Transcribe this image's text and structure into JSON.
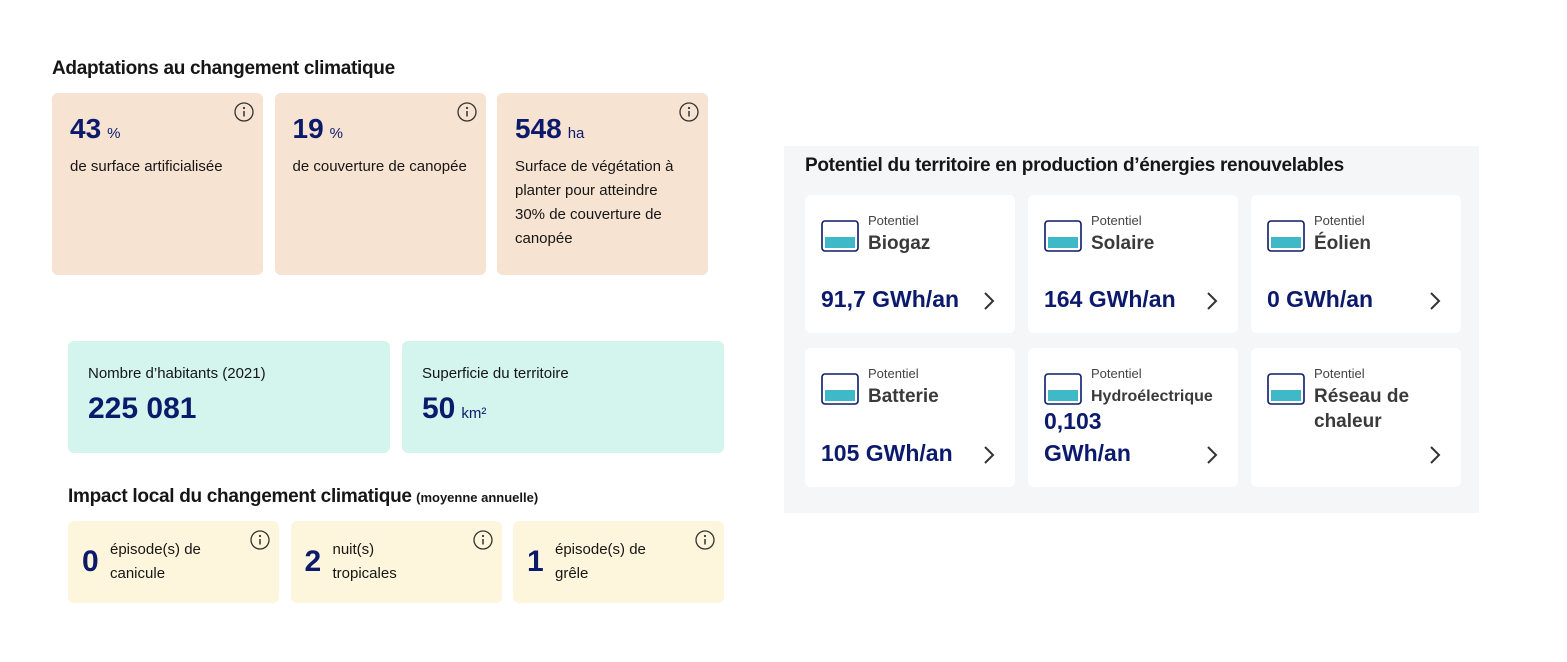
{
  "adaptations": {
    "title": "Adaptations au changement climatique",
    "cards": [
      {
        "value": "43",
        "unit": "%",
        "label": "de surface artificialisée"
      },
      {
        "value": "19",
        "unit": "%",
        "label": "de couverture de canopée"
      },
      {
        "value": "548",
        "unit": "ha",
        "label": "Surface de végétation à planter pour atteindre 30% de couverture de canopée"
      }
    ]
  },
  "stats": [
    {
      "label": "Nombre d’habitants (2021)",
      "value": "225 081"
    },
    {
      "label": "Superficie du territoire",
      "value": "50",
      "unit": "km²"
    }
  ],
  "impact": {
    "title": "Impact local du changement climatique",
    "subtitle": "(moyenne annuelle)",
    "cards": [
      {
        "value": "0",
        "label": "épisode(s) de canicule"
      },
      {
        "value": "2",
        "label": "nuit(s) tropicales"
      },
      {
        "value": "1",
        "label": "épisode(s) de grêle"
      }
    ]
  },
  "energy": {
    "title": "Potentiel du territoire en production d’énergies renouvelables",
    "cards": [
      {
        "kicker": "Potentiel",
        "name": "Biogaz",
        "value": "91,7 GWh/an"
      },
      {
        "kicker": "Potentiel",
        "name": "Solaire",
        "value": "164 GWh/an"
      },
      {
        "kicker": "Potentiel",
        "name": "Éolien",
        "value": "0 GWh/an"
      },
      {
        "kicker": "Potentiel",
        "name": "Batterie",
        "value": "105 GWh/an"
      },
      {
        "kicker": "Potentiel",
        "name": "Hydroélectrique",
        "value": "0,103 GWh/an"
      },
      {
        "kicker": "Potentiel",
        "name": "Réseau de chaleur"
      }
    ]
  }
}
